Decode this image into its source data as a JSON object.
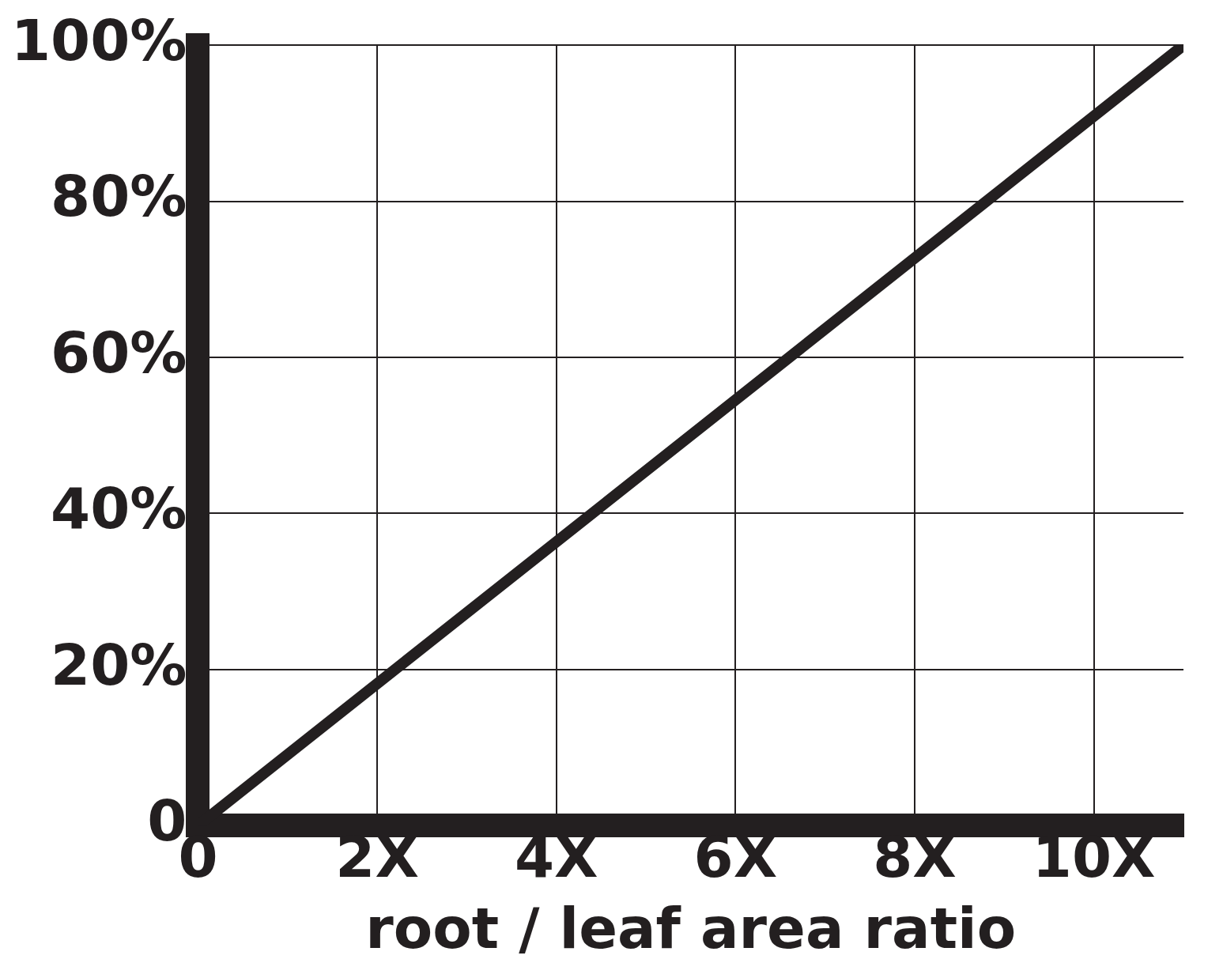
{
  "chart_data": {
    "type": "line",
    "xlabel": "root / leaf area ratio",
    "x": [
      0,
      11
    ],
    "series": [
      {
        "color": "#231f20",
        "values": [
          0,
          100
        ]
      }
    ],
    "xlim": [
      0,
      11
    ],
    "xticks": [
      {
        "value": 0,
        "label": "0"
      },
      {
        "value": 2,
        "label": "2X"
      },
      {
        "value": 4,
        "label": "4X"
      },
      {
        "value": 6,
        "label": "6X"
      },
      {
        "value": 8,
        "label": "8X"
      },
      {
        "value": 10,
        "label": "10X"
      }
    ],
    "ylim": [
      0,
      100
    ],
    "yticks": [
      {
        "value": 0,
        "label": "0"
      },
      {
        "value": 20,
        "label": "20%"
      },
      {
        "value": 40,
        "label": "40%"
      },
      {
        "value": 60,
        "label": "60%"
      },
      {
        "value": 80,
        "label": "80%"
      },
      {
        "value": 100,
        "label": "100%"
      }
    ],
    "grid": true,
    "marker": "none",
    "line_style": "solid",
    "legend": false
  }
}
